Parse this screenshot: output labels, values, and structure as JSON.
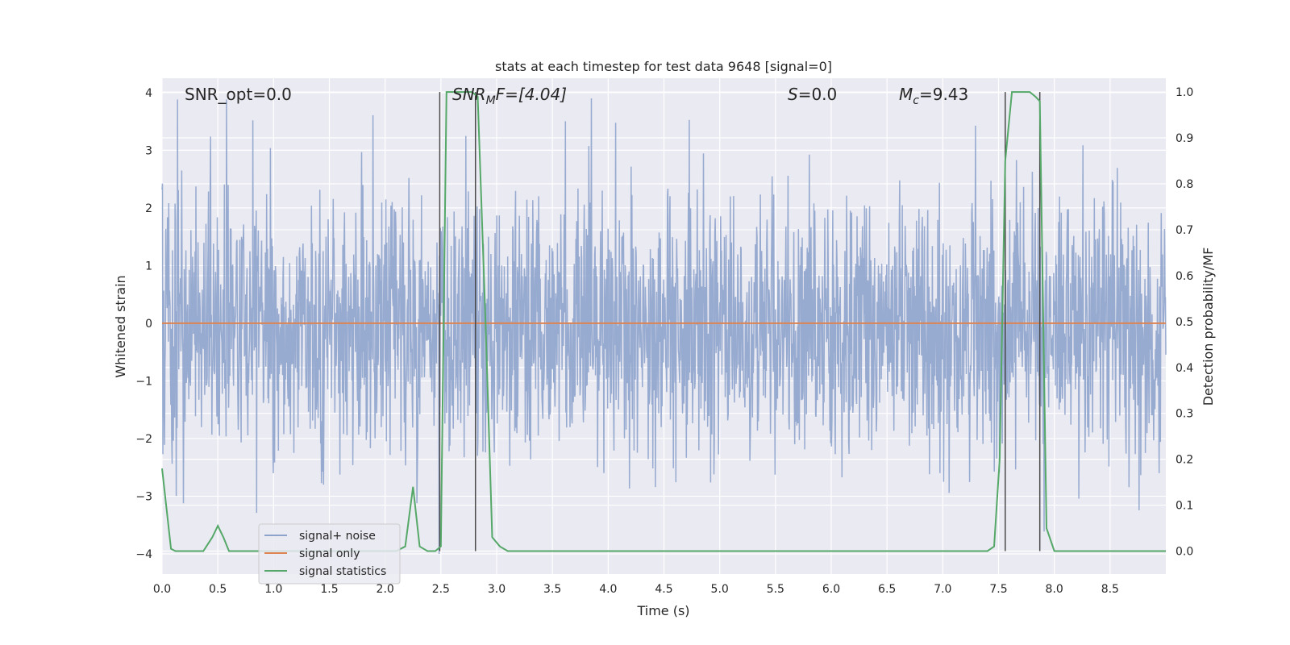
{
  "chart_data": {
    "type": "line",
    "title": "stats at each timestep for test data 9648 [signal=0]",
    "xlabel": "Time (s)",
    "ylabel_left": "Whitened strain",
    "ylabel_right": "Detection probability/MF",
    "xlim": [
      0,
      9.0
    ],
    "ylim_left": [
      -4.35,
      4.25
    ],
    "ylim_right": [
      -0.05,
      1.03
    ],
    "x_ticks": [
      "0.0",
      "0.5",
      "1.0",
      "1.5",
      "2.0",
      "2.5",
      "3.0",
      "3.5",
      "4.0",
      "4.5",
      "5.0",
      "5.5",
      "6.0",
      "6.5",
      "7.0",
      "7.5",
      "8.0",
      "8.5"
    ],
    "x_tick_values": [
      0,
      0.5,
      1,
      1.5,
      2,
      2.5,
      3,
      3.5,
      4,
      4.5,
      5,
      5.5,
      6,
      6.5,
      7,
      7.5,
      8,
      8.5
    ],
    "y_ticks_left": [
      "−4",
      "−3",
      "−2",
      "−1",
      "0",
      "1",
      "2",
      "3",
      "4"
    ],
    "y_tick_left_values": [
      -4,
      -3,
      -2,
      -1,
      0,
      1,
      2,
      3,
      4
    ],
    "y_ticks_right": [
      "0.0",
      "0.1",
      "0.2",
      "0.3",
      "0.4",
      "0.5",
      "0.6",
      "0.7",
      "0.8",
      "0.9",
      "1.0"
    ],
    "y_tick_right_values": [
      0,
      0.1,
      0.2,
      0.3,
      0.4,
      0.5,
      0.6,
      0.7,
      0.8,
      0.9,
      1.0
    ],
    "grid": true,
    "legend_position": "lower-left",
    "annotations": {
      "snr_opt": "SNR_opt=0.0",
      "snr_mf_sym": "SNR",
      "snr_mf_sub": "M",
      "snr_mf_rest": "F=[4.04]",
      "s_sym": "S",
      "s_rest": "=0.0",
      "mc_sym": "M",
      "mc_sub": "c",
      "mc_rest": "=9.43"
    },
    "vertical_lines": [
      2.49,
      2.81,
      7.56,
      7.87
    ],
    "series": [
      {
        "name": "signal+ noise",
        "color": "#8ea3cc",
        "axis": "left",
        "noise_amplitude": 1.0
      },
      {
        "name": "signal only",
        "color": "#dd8452",
        "axis": "left",
        "value": 0
      },
      {
        "name": "signal statistics",
        "color": "#55a868",
        "axis": "right",
        "x": [
          0.0,
          0.08,
          0.12,
          0.2,
          0.3,
          0.37,
          0.45,
          0.5,
          0.55,
          0.6,
          0.7,
          0.8,
          0.9,
          1.0,
          1.1,
          1.2,
          1.3,
          1.5,
          1.7,
          1.9,
          2.1,
          2.18,
          2.25,
          2.31,
          2.38,
          2.45,
          2.5,
          2.55,
          2.62,
          2.7,
          2.78,
          2.83,
          2.9,
          2.96,
          3.03,
          3.1,
          3.2,
          3.5,
          4.0,
          4.5,
          5.0,
          5.5,
          6.0,
          6.5,
          7.0,
          7.4,
          7.46,
          7.51,
          7.56,
          7.62,
          7.7,
          7.78,
          7.83,
          7.87,
          7.93,
          8.0,
          8.1,
          8.5,
          9.0
        ],
        "y": [
          0.18,
          0.005,
          0.0,
          0.0,
          0.0,
          0.0,
          0.03,
          0.055,
          0.03,
          0.0,
          0.0,
          0.0,
          0.0,
          0.0,
          0.0,
          0.0,
          0.0,
          0.0,
          0.0,
          0.0,
          0.0,
          0.01,
          0.14,
          0.01,
          0.0,
          0.0,
          0.01,
          1.0,
          1.0,
          1.0,
          1.0,
          0.99,
          0.5,
          0.03,
          0.01,
          0.0,
          0.0,
          0.0,
          0.0,
          0.0,
          0.0,
          0.0,
          0.0,
          0.0,
          0.0,
          0.0,
          0.01,
          0.2,
          0.85,
          1.0,
          1.0,
          1.0,
          0.99,
          0.98,
          0.05,
          0.0,
          0.0,
          0.0,
          0.0
        ]
      }
    ]
  }
}
